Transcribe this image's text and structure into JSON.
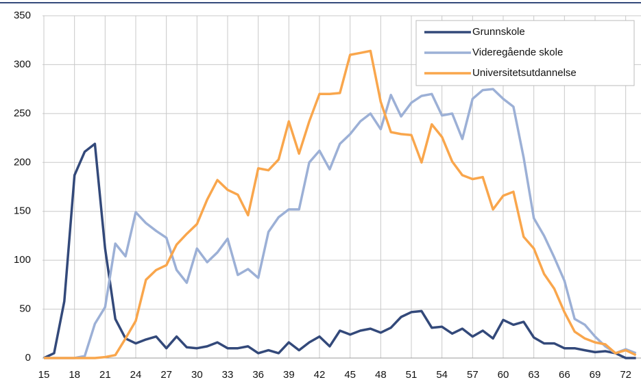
{
  "chart_data": {
    "type": "line",
    "x": [
      15,
      16,
      17,
      18,
      19,
      20,
      21,
      22,
      23,
      24,
      25,
      26,
      27,
      28,
      29,
      30,
      31,
      32,
      33,
      34,
      35,
      36,
      37,
      38,
      39,
      40,
      41,
      42,
      43,
      44,
      45,
      46,
      47,
      48,
      49,
      50,
      51,
      52,
      53,
      54,
      55,
      56,
      57,
      58,
      59,
      60,
      61,
      62,
      63,
      64,
      65,
      66,
      67,
      68,
      69,
      70,
      71,
      72,
      73
    ],
    "series": [
      {
        "name": "Grunnskole",
        "color": "#33497a",
        "values": [
          0,
          5,
          58,
          187,
          211,
          219,
          112,
          40,
          20,
          15,
          19,
          22,
          10,
          22,
          11,
          10,
          12,
          16,
          10,
          10,
          12,
          5,
          8,
          5,
          16,
          8,
          16,
          22,
          12,
          28,
          24,
          28,
          30,
          26,
          31,
          42,
          47,
          48,
          31,
          32,
          25,
          30,
          22,
          28,
          20,
          39,
          34,
          37,
          21,
          15,
          15,
          10,
          10,
          8,
          6,
          7,
          5,
          0,
          0
        ]
      },
      {
        "name": "Videregående skole",
        "color": "#9cb0d6",
        "values": [
          0,
          0,
          0,
          0,
          2,
          35,
          52,
          117,
          104,
          149,
          138,
          130,
          123,
          90,
          77,
          112,
          98,
          108,
          122,
          85,
          91,
          82,
          129,
          144,
          152,
          152,
          200,
          212,
          193,
          219,
          229,
          242,
          250,
          234,
          269,
          247,
          261,
          268,
          270,
          248,
          250,
          224,
          265,
          274,
          275,
          265,
          257,
          205,
          143,
          125,
          103,
          79,
          40,
          34,
          22,
          12,
          5,
          9,
          5
        ]
      },
      {
        "name": "Universitetsutdannelse",
        "color": "#f9a64c",
        "values": [
          0,
          0,
          0,
          0,
          0,
          0,
          1,
          3,
          20,
          38,
          80,
          90,
          95,
          116,
          127,
          137,
          162,
          182,
          172,
          167,
          146,
          194,
          192,
          203,
          242,
          209,
          242,
          270,
          270,
          271,
          310,
          312,
          314,
          262,
          231,
          229,
          228,
          200,
          239,
          226,
          201,
          187,
          183,
          185,
          152,
          166,
          170,
          124,
          112,
          86,
          71,
          47,
          27,
          20,
          16,
          14,
          5,
          8,
          3
        ]
      }
    ],
    "xlim": [
      15,
      73.5
    ],
    "xticks": [
      15,
      18,
      21,
      24,
      27,
      30,
      33,
      36,
      39,
      42,
      45,
      48,
      51,
      54,
      57,
      60,
      63,
      66,
      69,
      72
    ],
    "ylim": [
      0,
      350
    ],
    "yticks": [
      0,
      50,
      100,
      150,
      200,
      250,
      300,
      350
    ],
    "grid": true,
    "legend": "top-right"
  }
}
